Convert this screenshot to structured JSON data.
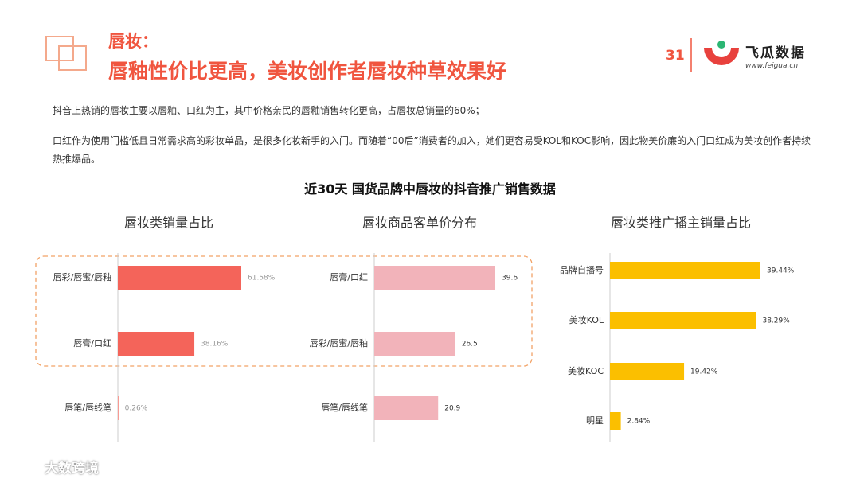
{
  "header": {
    "tag": "唇妆：",
    "title": "唇釉性价比更高，美妆创作者唇妆种草效果好",
    "page": "31",
    "brand": "飞瓜数据",
    "url": "www.feigua.cn"
  },
  "paragraphs": [
    "抖音上热销的唇妆主要以唇釉、口红为主，其中价格亲民的唇釉销售转化更高，占唇妆总销量的60%；",
    "口红作为使用门槛低且日常需求高的彩妆单品，是很多化妆新手的入门。而随着“00后”消费者的加入，她们更容易受KOL和KOC影响，因此物美价廉的入门口红成为美妆创作者持续热推爆品。"
  ],
  "section_title": "近30天 国货品牌中唇妆的抖音推广销售数据",
  "watermark": "大数跨境",
  "chart_data": [
    {
      "type": "bar",
      "title": "唇妆类销量占比",
      "categories": [
        "唇彩/唇蜜/唇釉",
        "唇膏/口红",
        "唇笔/唇线笔"
      ],
      "values": [
        61.58,
        38.16,
        0.26
      ],
      "value_labels": [
        "61.58%",
        "38.16%",
        "0.26%"
      ],
      "color": "#f4645a"
    },
    {
      "type": "bar",
      "title": "唇妆商品客单价分布",
      "categories": [
        "唇膏/口红",
        "唇彩/唇蜜/唇釉",
        "唇笔/唇线笔"
      ],
      "values": [
        39.6,
        26.5,
        20.9
      ],
      "color": "#f2b3ba"
    },
    {
      "type": "bar",
      "title": "唇妆类推广播主销量占比",
      "categories": [
        "品牌自播号",
        "美妆KOL",
        "美妆KOC",
        "明星"
      ],
      "values": [
        39.44,
        38.29,
        19.42,
        2.84
      ],
      "value_labels": [
        "39.44%",
        "38.29%",
        "19.42%",
        "2.84%"
      ],
      "color": "#fbbf00"
    }
  ]
}
